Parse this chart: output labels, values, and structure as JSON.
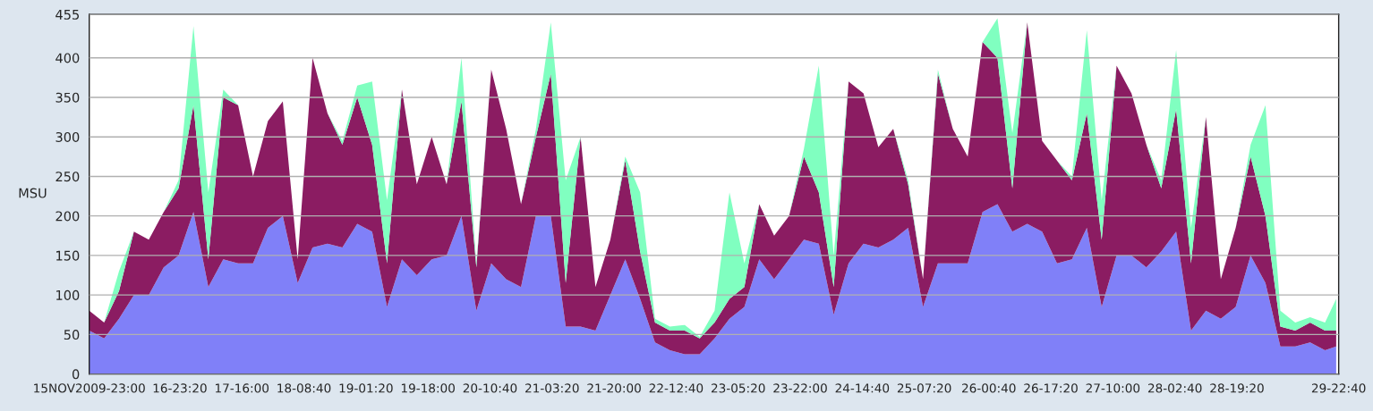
{
  "chart_data": {
    "type": "area",
    "stacked": true,
    "ylabel": "MSU",
    "grid": "y",
    "x": [
      "2009-11-15T23:00",
      "2009-11-16T03:00",
      "2009-11-16T07:00",
      "2009-11-16T11:00",
      "2009-11-16T15:00",
      "2009-11-16T19:00",
      "2009-11-16T23:00",
      "2009-11-17T03:00",
      "2009-11-17T07:00",
      "2009-11-17T11:00",
      "2009-11-17T15:00",
      "2009-11-17T19:00",
      "2009-11-17T23:00",
      "2009-11-18T03:00",
      "2009-11-18T07:00",
      "2009-11-18T11:00",
      "2009-11-18T15:00",
      "2009-11-18T19:00",
      "2009-11-18T23:00",
      "2009-11-19T03:00",
      "2009-11-19T07:00",
      "2009-11-19T11:00",
      "2009-11-19T15:00",
      "2009-11-19T19:00",
      "2009-11-19T23:00",
      "2009-11-20T03:00",
      "2009-11-20T07:00",
      "2009-11-20T11:00",
      "2009-11-20T15:00",
      "2009-11-20T19:00",
      "2009-11-20T23:00",
      "2009-11-21T03:00",
      "2009-11-21T07:00",
      "2009-11-21T11:00",
      "2009-11-21T15:00",
      "2009-11-21T19:00",
      "2009-11-21T23:00",
      "2009-11-22T03:00",
      "2009-11-22T07:00",
      "2009-11-22T11:00",
      "2009-11-22T15:00",
      "2009-11-22T19:00",
      "2009-11-22T23:00",
      "2009-11-23T03:00",
      "2009-11-23T07:00",
      "2009-11-23T11:00",
      "2009-11-23T15:00",
      "2009-11-23T19:00",
      "2009-11-23T23:00",
      "2009-11-24T03:00",
      "2009-11-24T07:00",
      "2009-11-24T11:00",
      "2009-11-24T15:00",
      "2009-11-24T19:00",
      "2009-11-24T23:00",
      "2009-11-25T03:00",
      "2009-11-25T07:00",
      "2009-11-25T11:00",
      "2009-11-25T15:00",
      "2009-11-25T19:00",
      "2009-11-25T23:00",
      "2009-11-26T03:00",
      "2009-11-26T07:00",
      "2009-11-26T11:00",
      "2009-11-26T15:00",
      "2009-11-26T19:00",
      "2009-11-26T23:00",
      "2009-11-27T03:00",
      "2009-11-27T07:00",
      "2009-11-27T11:00",
      "2009-11-27T15:00",
      "2009-11-27T19:00",
      "2009-11-27T23:00",
      "2009-11-28T03:00",
      "2009-11-28T07:00",
      "2009-11-28T11:00",
      "2009-11-28T15:00",
      "2009-11-28T19:00",
      "2009-11-28T23:00",
      "2009-11-29T03:00",
      "2009-11-29T07:00",
      "2009-11-29T11:00",
      "2009-11-29T15:00",
      "2009-11-29T19:00",
      "2009-11-29T22:00"
    ],
    "series": [
      {
        "color": "#8080f8",
        "values": [
          55,
          45,
          70,
          100,
          100,
          135,
          150,
          205,
          110,
          145,
          140,
          140,
          185,
          200,
          115,
          160,
          165,
          160,
          190,
          180,
          85,
          145,
          125,
          145,
          150,
          200,
          80,
          140,
          120,
          110,
          200,
          200,
          60,
          60,
          55,
          100,
          145,
          95,
          40,
          30,
          25,
          25,
          45,
          70,
          85,
          145,
          120,
          145,
          170,
          165,
          75,
          140,
          165,
          160,
          170,
          185,
          85,
          140,
          140,
          140,
          205,
          215,
          180,
          190,
          180,
          140,
          145,
          185,
          85,
          150,
          150,
          135,
          155,
          180,
          55,
          80,
          70,
          85,
          150,
          115,
          35,
          35,
          40,
          30,
          35
        ]
      },
      {
        "color": "#8b1c62",
        "values": [
          25,
          20,
          35,
          80,
          70,
          70,
          85,
          135,
          35,
          205,
          200,
          110,
          135,
          145,
          30,
          240,
          165,
          130,
          160,
          110,
          55,
          215,
          115,
          155,
          90,
          145,
          55,
          245,
          190,
          105,
          100,
          180,
          55,
          240,
          55,
          70,
          125,
          60,
          25,
          25,
          30,
          20,
          20,
          25,
          25,
          70,
          55,
          55,
          105,
          65,
          35,
          230,
          190,
          127,
          140,
          55,
          35,
          240,
          170,
          135,
          215,
          185,
          55,
          255,
          115,
          130,
          100,
          145,
          85,
          240,
          205,
          155,
          80,
          155,
          85,
          245,
          50,
          100,
          125,
          85,
          25,
          20,
          25,
          25,
          20
        ]
      },
      {
        "color": "#80ffc0",
        "values": [
          0,
          0,
          25,
          0,
          0,
          0,
          10,
          100,
          85,
          10,
          0,
          0,
          0,
          0,
          0,
          0,
          0,
          5,
          15,
          80,
          80,
          0,
          0,
          0,
          0,
          55,
          5,
          0,
          0,
          0,
          10,
          65,
          130,
          0,
          0,
          0,
          5,
          75,
          5,
          5,
          7,
          2,
          15,
          135,
          30,
          0,
          0,
          0,
          10,
          160,
          40,
          0,
          0,
          0,
          0,
          5,
          0,
          5,
          0,
          0,
          0,
          50,
          70,
          0,
          0,
          0,
          5,
          105,
          50,
          0,
          0,
          0,
          10,
          75,
          45,
          0,
          0,
          0,
          15,
          140,
          20,
          10,
          7,
          10,
          40
        ]
      }
    ],
    "xlim": [
      "2009-11-15T23:00",
      "2009-11-29T22:40"
    ],
    "xticks": [
      {
        "value": "2009-11-15T23:00",
        "label": "15NOV2009-23:00"
      },
      {
        "value": "2009-11-16T23:20",
        "label": "16-23:20"
      },
      {
        "value": "2009-11-17T16:00",
        "label": "17-16:00"
      },
      {
        "value": "2009-11-18T08:40",
        "label": "18-08:40"
      },
      {
        "value": "2009-11-19T01:20",
        "label": "19-01:20"
      },
      {
        "value": "2009-11-19T18:00",
        "label": "19-18:00"
      },
      {
        "value": "2009-11-20T10:40",
        "label": "20-10:40"
      },
      {
        "value": "2009-11-21T03:20",
        "label": "21-03:20"
      },
      {
        "value": "2009-11-21T20:00",
        "label": "21-20:00"
      },
      {
        "value": "2009-11-22T12:40",
        "label": "22-12:40"
      },
      {
        "value": "2009-11-23T05:20",
        "label": "23-05:20"
      },
      {
        "value": "2009-11-23T22:00",
        "label": "23-22:00"
      },
      {
        "value": "2009-11-24T14:40",
        "label": "24-14:40"
      },
      {
        "value": "2009-11-25T07:20",
        "label": "25-07:20"
      },
      {
        "value": "2009-11-26T00:40",
        "label": "26-00:40"
      },
      {
        "value": "2009-11-26T17:20",
        "label": "26-17:20"
      },
      {
        "value": "2009-11-27T10:00",
        "label": "27-10:00"
      },
      {
        "value": "2009-11-28T02:40",
        "label": "28-02:40"
      },
      {
        "value": "2009-11-28T19:20",
        "label": "28-19:20"
      },
      {
        "value": "2009-11-29T22:40",
        "label": "29-22:40"
      }
    ],
    "ylim": [
      0,
      455
    ],
    "yticks": [
      0,
      50,
      100,
      150,
      200,
      250,
      300,
      350,
      400,
      455
    ]
  }
}
